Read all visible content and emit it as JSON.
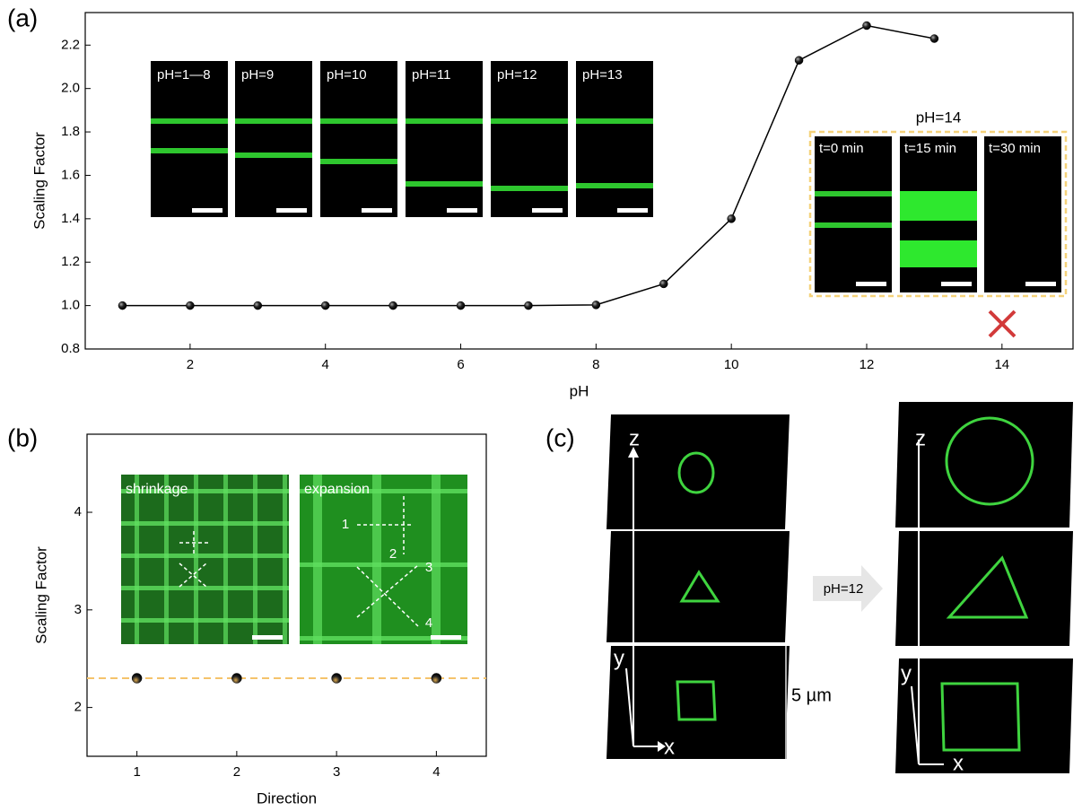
{
  "panel_labels": [
    "(a)",
    "(b)",
    "(c)"
  ],
  "chart_data": [
    {
      "type": "line",
      "xlabel": "pH",
      "ylabel": "Scaling Factor",
      "x": [
        1,
        2,
        3,
        4,
        5,
        6,
        7,
        8,
        9,
        10,
        11,
        12,
        13
      ],
      "values": [
        1.0,
        1.0,
        1.0,
        1.0,
        1.0,
        1.0,
        1.0,
        1.003,
        1.1,
        1.4,
        2.13,
        2.29,
        2.23
      ],
      "color": "#000000",
      "xlim": [
        0.45,
        15.05
      ],
      "xticks": [
        2,
        4,
        6,
        8,
        10,
        12,
        14
      ],
      "ylim": [
        0.8,
        2.35
      ],
      "yticks": [
        {
          "value": 0.8,
          "label": "0.8"
        },
        {
          "value": 1.0,
          "label": "1.0"
        },
        {
          "value": 1.2,
          "label": "1.2"
        },
        {
          "value": 1.4,
          "label": "1.4"
        },
        {
          "value": 1.6,
          "label": "1.6"
        },
        {
          "value": 1.8,
          "label": "1.8"
        },
        {
          "value": 2.0,
          "label": "2.0"
        },
        {
          "value": 2.2,
          "label": "2.2"
        }
      ],
      "inset_labels": [
        "pH=1—8",
        "pH=9",
        "pH=10",
        "pH=11",
        "pH=12",
        "pH=13"
      ],
      "inset_title": "pH=14",
      "inset_time_labels": [
        "t=0 min",
        "t=15 min",
        "t=30 min"
      ]
    },
    {
      "type": "scatter",
      "xlabel": "Direction",
      "ylabel": "Scaling Factor",
      "x": [
        1,
        2,
        3,
        4
      ],
      "values": [
        2.3,
        2.3,
        2.3,
        2.3
      ],
      "color": "#000000",
      "reference_line": 2.3,
      "reference_color": "#f5c36b",
      "xlim": [
        0.5,
        4.5
      ],
      "xticks": [
        1,
        2,
        3,
        4
      ],
      "ylim": [
        1.5,
        4.8
      ],
      "yticks": [
        2,
        3,
        4
      ],
      "inset_labels": [
        "shrinkage",
        "expansion"
      ],
      "direction_labels": [
        "1",
        "2",
        "3",
        "4"
      ]
    }
  ],
  "panel_c": {
    "axis_labels_before": [
      "z",
      "y",
      "x"
    ],
    "axis_labels_after": [
      "z",
      "y",
      "x"
    ],
    "scale_label": "5 µm",
    "arrow_label": "pH=12"
  }
}
